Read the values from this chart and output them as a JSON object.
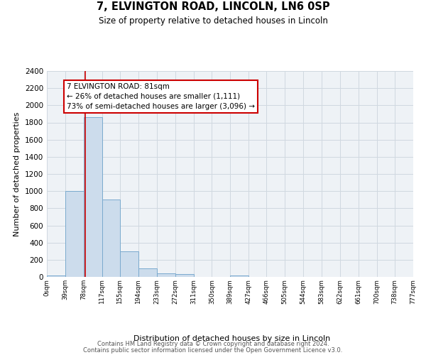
{
  "title": "7, ELVINGTON ROAD, LINCOLN, LN6 0SP",
  "subtitle": "Size of property relative to detached houses in Lincoln",
  "xlabel": "Distribution of detached houses by size in Lincoln",
  "ylabel": "Number of detached properties",
  "bin_edges": [
    0,
    39,
    78,
    117,
    155,
    194,
    233,
    272,
    311,
    350,
    389,
    427,
    466,
    505,
    544,
    583,
    622,
    661,
    700,
    738,
    777
  ],
  "bin_labels": [
    "0sqm",
    "39sqm",
    "78sqm",
    "117sqm",
    "155sqm",
    "194sqm",
    "233sqm",
    "272sqm",
    "311sqm",
    "350sqm",
    "389sqm",
    "427sqm",
    "466sqm",
    "505sqm",
    "544sqm",
    "583sqm",
    "622sqm",
    "661sqm",
    "700sqm",
    "738sqm",
    "777sqm"
  ],
  "bar_heights": [
    20,
    1000,
    1860,
    900,
    300,
    100,
    40,
    30,
    0,
    0,
    20,
    0,
    0,
    0,
    0,
    0,
    0,
    0,
    0,
    0
  ],
  "bar_color": "#ccdcec",
  "bar_edge_color": "#7aaace",
  "property_line_x": 81,
  "property_line_color": "#cc0000",
  "ylim": [
    0,
    2400
  ],
  "yticks": [
    0,
    200,
    400,
    600,
    800,
    1000,
    1200,
    1400,
    1600,
    1800,
    2000,
    2200,
    2400
  ],
  "annotation_title": "7 ELVINGTON ROAD: 81sqm",
  "annotation_line1": "← 26% of detached houses are smaller (1,111)",
  "annotation_line2": "73% of semi-detached houses are larger (3,096) →",
  "annotation_box_color": "#ffffff",
  "annotation_box_edge": "#cc0000",
  "grid_color": "#d0d8e0",
  "bg_color": "#eef2f6",
  "footnote1": "Contains HM Land Registry data © Crown copyright and database right 2024.",
  "footnote2": "Contains public sector information licensed under the Open Government Licence v3.0."
}
